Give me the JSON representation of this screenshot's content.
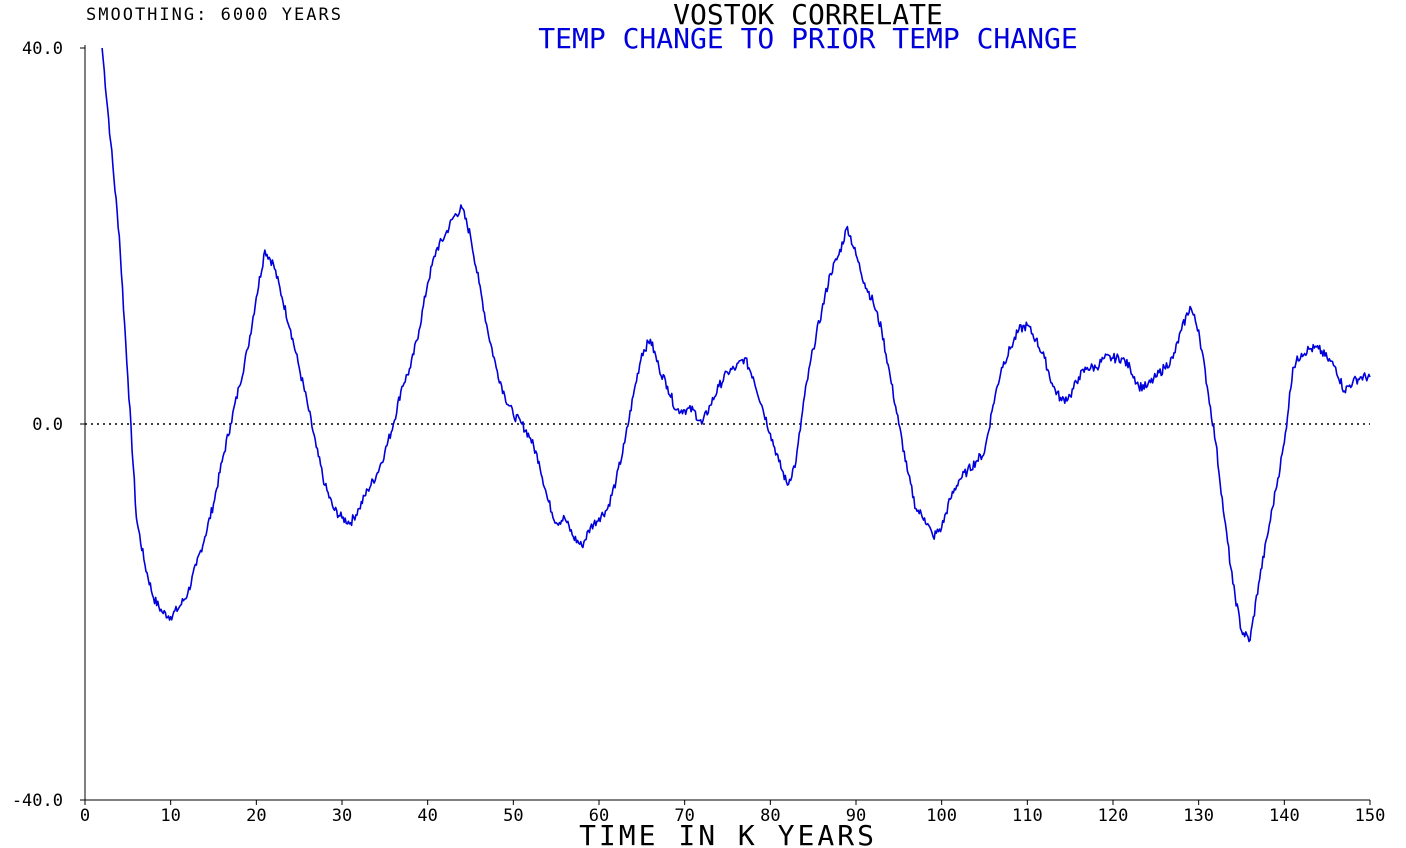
{
  "chart_data": {
    "type": "line",
    "title": "VOSTOK CORRELATE",
    "subtitle": "TEMP CHANGE TO PRIOR TEMP CHANGE",
    "annotation": "SMOOTHING: 6000 YEARS",
    "xlabel": "TIME IN K YEARS",
    "ylabel": "",
    "xlim": [
      0,
      150
    ],
    "ylim": [
      -40,
      40
    ],
    "x_ticks": [
      "0",
      "10",
      "20",
      "30",
      "40",
      "50",
      "60",
      "70",
      "80",
      "90",
      "100",
      "110",
      "120",
      "130",
      "140",
      "150"
    ],
    "y_ticks": [
      "40.0",
      "0.0",
      "-40.0"
    ],
    "reference_line": {
      "y": 0,
      "style": "dotted"
    },
    "grid": false,
    "series": [
      {
        "color": "#0000dd",
        "points": [
          [
            2,
            40
          ],
          [
            3,
            30
          ],
          [
            4,
            20
          ],
          [
            5,
            5
          ],
          [
            6,
            -10
          ],
          [
            7,
            -15
          ],
          [
            8,
            -18.5
          ],
          [
            9,
            -20
          ],
          [
            10,
            -20.5
          ],
          [
            11,
            -19.5
          ],
          [
            12,
            -18
          ],
          [
            13,
            -15
          ],
          [
            14,
            -12
          ],
          [
            15,
            -8.5
          ],
          [
            16,
            -4
          ],
          [
            17,
            0
          ],
          [
            18,
            4
          ],
          [
            19,
            8
          ],
          [
            20,
            13.5
          ],
          [
            21,
            18.5
          ],
          [
            22,
            17
          ],
          [
            23,
            13.5
          ],
          [
            24,
            10
          ],
          [
            25,
            6
          ],
          [
            26,
            2
          ],
          [
            27,
            -2.5
          ],
          [
            28,
            -6.5
          ],
          [
            29,
            -9
          ],
          [
            30,
            -10
          ],
          [
            31,
            -10.5
          ],
          [
            32,
            -9
          ],
          [
            33,
            -7
          ],
          [
            34,
            -5.5
          ],
          [
            35,
            -3
          ],
          [
            36,
            0
          ],
          [
            37,
            4
          ],
          [
            38,
            6
          ],
          [
            39,
            10
          ],
          [
            40,
            15
          ],
          [
            41,
            18.5
          ],
          [
            42,
            20
          ],
          [
            43,
            22
          ],
          [
            44,
            23
          ],
          [
            45,
            20
          ],
          [
            46,
            15
          ],
          [
            47,
            10
          ],
          [
            48,
            6
          ],
          [
            49,
            3
          ],
          [
            50,
            1
          ],
          [
            51,
            0
          ],
          [
            52,
            -1.5
          ],
          [
            53,
            -4
          ],
          [
            54,
            -8
          ],
          [
            55,
            -10.5
          ],
          [
            56,
            -10
          ],
          [
            57,
            -12
          ],
          [
            58,
            -13
          ],
          [
            59,
            -11
          ],
          [
            60,
            -10
          ],
          [
            61,
            -9
          ],
          [
            62,
            -6
          ],
          [
            63,
            -2
          ],
          [
            64,
            3
          ],
          [
            65,
            7.5
          ],
          [
            66,
            9
          ],
          [
            67,
            6
          ],
          [
            68,
            4
          ],
          [
            69,
            1.5
          ],
          [
            70,
            1.5
          ],
          [
            71,
            1.5
          ],
          [
            72,
            0
          ],
          [
            73,
            2
          ],
          [
            74,
            4
          ],
          [
            75,
            5.5
          ],
          [
            76,
            6
          ],
          [
            77,
            7
          ],
          [
            78,
            5
          ],
          [
            79,
            2
          ],
          [
            80,
            -1
          ],
          [
            81,
            -4
          ],
          [
            82,
            -6.5
          ],
          [
            83,
            -4
          ],
          [
            84,
            3
          ],
          [
            85,
            8
          ],
          [
            86,
            12
          ],
          [
            87,
            16
          ],
          [
            88,
            18
          ],
          [
            89,
            21
          ],
          [
            90,
            18
          ],
          [
            91,
            15
          ],
          [
            92,
            13
          ],
          [
            93,
            10
          ],
          [
            94,
            5
          ],
          [
            95,
            0
          ],
          [
            96,
            -5
          ],
          [
            97,
            -9
          ],
          [
            98,
            -10
          ],
          [
            99,
            -12
          ],
          [
            100,
            -11
          ],
          [
            101,
            -8
          ],
          [
            102,
            -6
          ],
          [
            103,
            -5
          ],
          [
            104,
            -4
          ],
          [
            105,
            -3
          ],
          [
            106,
            2
          ],
          [
            107,
            6
          ],
          [
            108,
            8
          ],
          [
            109,
            10
          ],
          [
            110,
            10.5
          ],
          [
            111,
            9
          ],
          [
            112,
            7
          ],
          [
            113,
            4
          ],
          [
            114,
            2.5
          ],
          [
            115,
            3
          ],
          [
            116,
            5
          ],
          [
            117,
            6
          ],
          [
            118,
            6
          ],
          [
            119,
            7
          ],
          [
            120,
            7
          ],
          [
            121,
            7
          ],
          [
            122,
            6
          ],
          [
            123,
            4
          ],
          [
            124,
            4
          ],
          [
            125,
            5
          ],
          [
            126,
            6
          ],
          [
            127,
            7
          ],
          [
            128,
            10
          ],
          [
            129,
            12.5
          ],
          [
            130,
            10
          ],
          [
            131,
            4
          ],
          [
            132,
            -2
          ],
          [
            133,
            -10
          ],
          [
            134,
            -17
          ],
          [
            135,
            -22
          ],
          [
            136,
            -23
          ],
          [
            137,
            -17
          ],
          [
            138,
            -12
          ],
          [
            139,
            -7
          ],
          [
            140,
            -2
          ],
          [
            141,
            6
          ],
          [
            142,
            7.5
          ],
          [
            143,
            8
          ],
          [
            144,
            8
          ],
          [
            145,
            7
          ],
          [
            146,
            6
          ],
          [
            147,
            3.5
          ],
          [
            148,
            4.5
          ],
          [
            149,
            5
          ],
          [
            150,
            5
          ]
        ]
      }
    ]
  }
}
